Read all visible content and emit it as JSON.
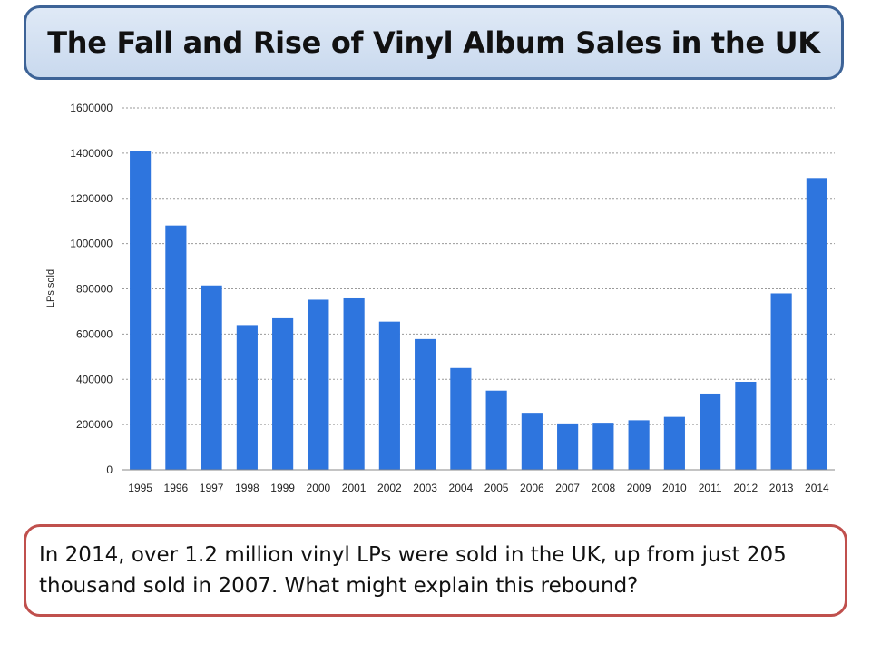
{
  "header": {
    "title": "The Fall and Rise of Vinyl Album Sales in the UK"
  },
  "chart_data": {
    "type": "bar",
    "categories": [
      "1995",
      "1996",
      "1997",
      "1998",
      "1999",
      "2000",
      "2001",
      "2002",
      "2003",
      "2004",
      "2005",
      "2006",
      "2007",
      "2008",
      "2009",
      "2010",
      "2011",
      "2012",
      "2013",
      "2014"
    ],
    "values": [
      1410000,
      1080000,
      815000,
      640000,
      670000,
      752000,
      758000,
      655000,
      578000,
      450000,
      350000,
      252000,
      205000,
      208000,
      219000,
      234000,
      337000,
      389000,
      780000,
      1290000
    ],
    "title": "",
    "xlabel": "",
    "ylabel": "LPs sold",
    "ylim": [
      0,
      1600000
    ],
    "yticks": [
      "0",
      "200000",
      "400000",
      "600000",
      "800000",
      "1000000",
      "1200000",
      "1400000",
      "1600000"
    ],
    "grid": true,
    "bar_color": "#2e75de"
  },
  "caption": {
    "text": "In 2014, over 1.2 million vinyl LPs were sold in the UK, up from just 205 thousand sold in 2007. What might explain this rebound?"
  }
}
